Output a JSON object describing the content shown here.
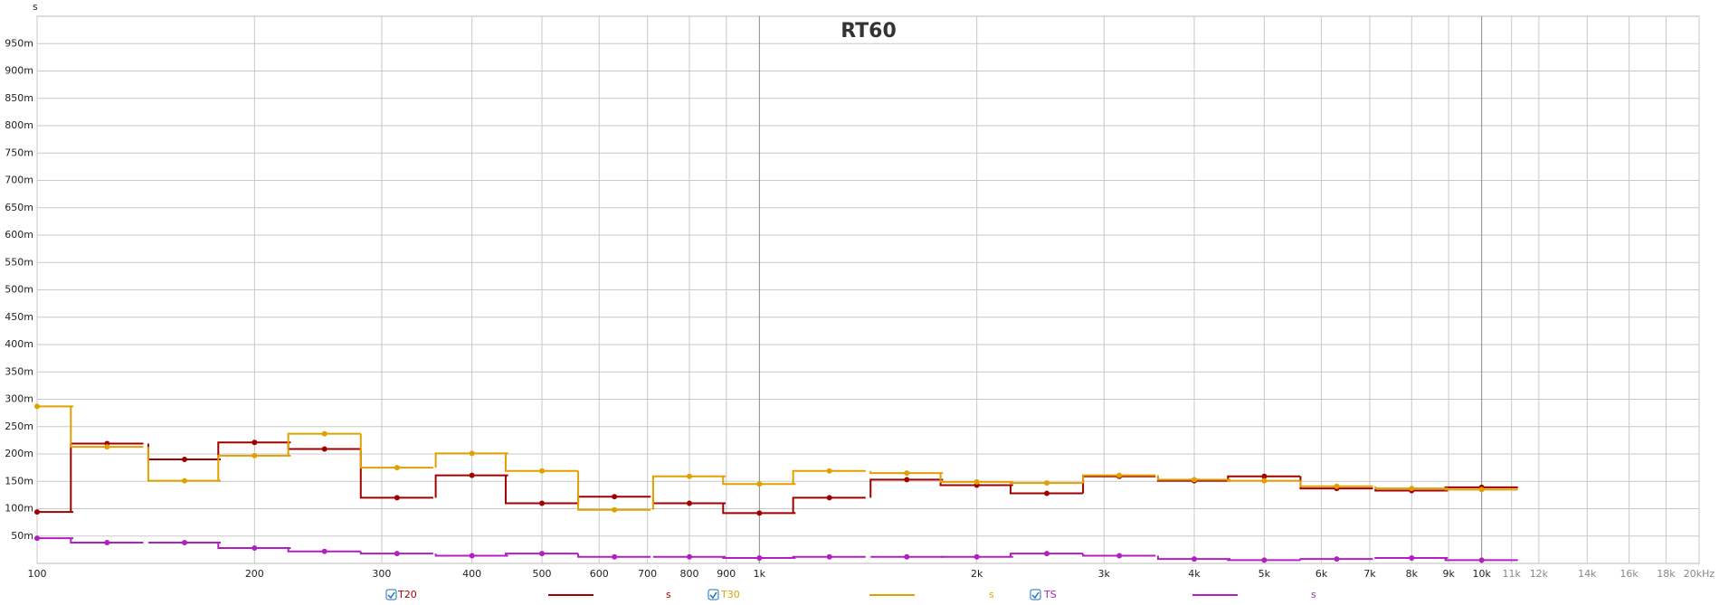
{
  "chart_data": {
    "type": "step",
    "title": "RT60",
    "y_unit": "s",
    "xlim": [
      100,
      20000
    ],
    "ylim": [
      0,
      1
    ],
    "log_x": true,
    "grid": true,
    "xticks": [
      100,
      200,
      300,
      400,
      500,
      600,
      700,
      800,
      900,
      {
        "value": 1000,
        "label": "1k"
      },
      {
        "value": 2000,
        "label": "2k"
      },
      {
        "value": 3000,
        "label": "3k"
      },
      {
        "value": 4000,
        "label": "4k"
      },
      {
        "value": 5000,
        "label": "5k"
      },
      {
        "value": 6000,
        "label": "6k"
      },
      {
        "value": 7000,
        "label": "7k"
      },
      {
        "value": 8000,
        "label": "8k"
      },
      {
        "value": 9000,
        "label": "9k"
      },
      {
        "value": 10000,
        "label": "10k"
      },
      {
        "value": 11000,
        "label": "11k"
      },
      {
        "value": 12000,
        "label": "12k"
      },
      {
        "value": 14000,
        "label": "14k"
      },
      {
        "value": 16000,
        "label": "16k"
      },
      {
        "value": 18000,
        "label": "18k"
      },
      {
        "value": 20000,
        "label": "20kHz"
      }
    ],
    "yticks": [
      {
        "value": 0.05,
        "label": "50m"
      },
      {
        "value": 0.1,
        "label": "100m"
      },
      {
        "value": 0.15,
        "label": "150m"
      },
      {
        "value": 0.2,
        "label": "200m"
      },
      {
        "value": 0.25,
        "label": "250m"
      },
      {
        "value": 0.3,
        "label": "300m"
      },
      {
        "value": 0.35,
        "label": "350m"
      },
      {
        "value": 0.4,
        "label": "400m"
      },
      {
        "value": 0.45,
        "label": "450m"
      },
      {
        "value": 0.5,
        "label": "500m"
      },
      {
        "value": 0.55,
        "label": "550m"
      },
      {
        "value": 0.6,
        "label": "600m"
      },
      {
        "value": 0.65,
        "label": "650m"
      },
      {
        "value": 0.7,
        "label": "700m"
      },
      {
        "value": 0.75,
        "label": "750m"
      },
      {
        "value": 0.8,
        "label": "800m"
      },
      {
        "value": 0.85,
        "label": "850m"
      },
      {
        "value": 0.9,
        "label": "900m"
      },
      {
        "value": 0.95,
        "label": "950m"
      }
    ],
    "x": [
      100,
      125,
      160,
      200,
      250,
      315,
      400,
      500,
      630,
      800,
      1000,
      1250,
      1600,
      2000,
      2500,
      3150,
      4000,
      5000,
      6300,
      8000,
      10000
    ],
    "series": [
      {
        "name": "T20",
        "unit": "s",
        "color": "#a00000",
        "values": [
          0.094,
          0.219,
          0.19,
          0.221,
          0.209,
          0.12,
          0.161,
          0.11,
          0.122,
          0.11,
          0.092,
          0.12,
          0.153,
          0.143,
          0.128,
          0.159,
          0.151,
          0.159,
          0.137,
          0.133,
          0.139
        ]
      },
      {
        "name": "T30",
        "unit": "s",
        "color": "#e0a000",
        "values": [
          0.287,
          0.213,
          0.151,
          0.197,
          0.237,
          0.175,
          0.201,
          0.169,
          0.098,
          0.159,
          0.145,
          0.169,
          0.165,
          0.149,
          0.147,
          0.161,
          0.153,
          0.151,
          0.141,
          0.137,
          0.135
        ]
      },
      {
        "name": "TS",
        "unit": "s",
        "color": "#b020c0",
        "values": [
          0.046,
          0.038,
          0.038,
          0.028,
          0.022,
          0.018,
          0.014,
          0.018,
          0.012,
          0.012,
          0.01,
          0.012,
          0.012,
          0.012,
          0.018,
          0.014,
          0.008,
          0.006,
          0.008,
          0.01,
          0.006
        ]
      }
    ]
  }
}
